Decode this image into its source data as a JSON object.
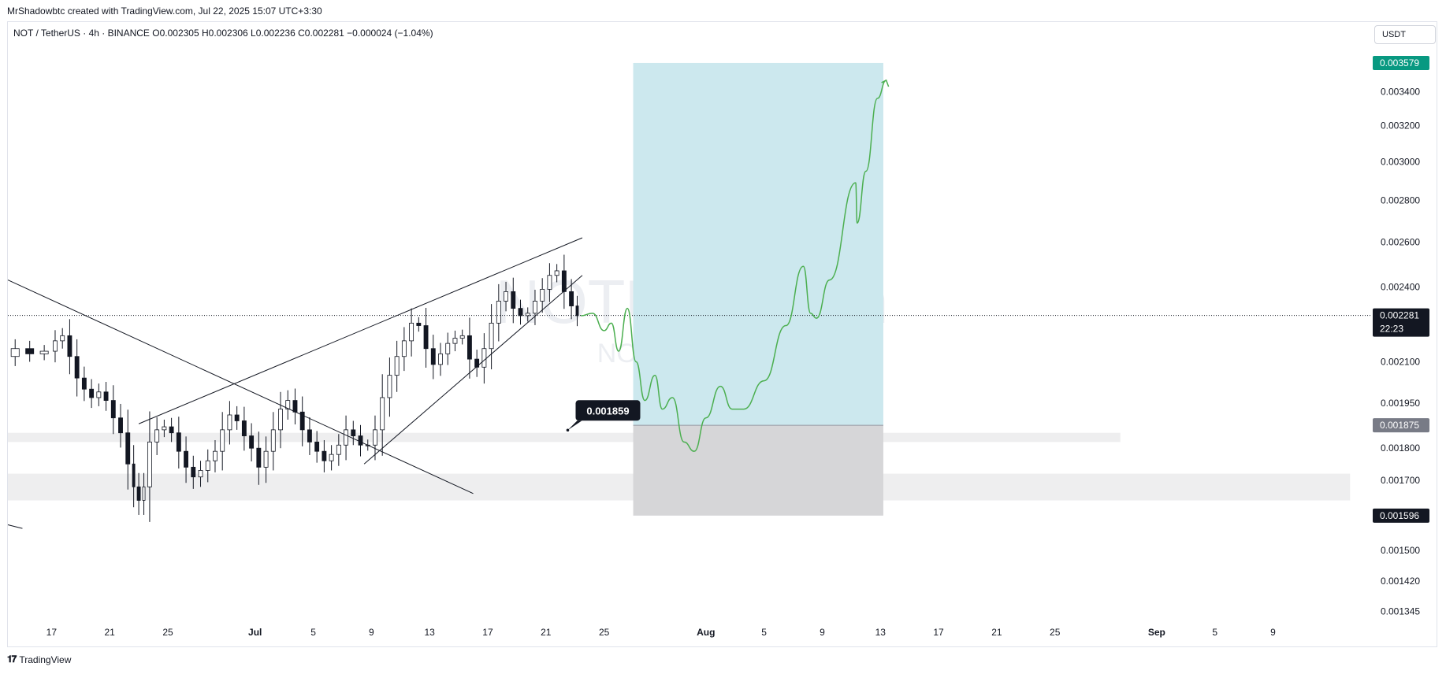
{
  "header": {
    "created_by": "MrShadowbtc created with TradingView.com, Jul 22, 2025 15:07 UTC+3:30"
  },
  "legend": {
    "symbol_line": "NOT / TetherUS · 4h · BINANCE  O0.002305  H0.002306  L0.002236  C0.002281  −0.000024 (−1.04%)"
  },
  "currency_button": "USDT",
  "watermark": {
    "line1": "NOTUSDT, 4h",
    "line2": "NOT / TetherUS"
  },
  "footer": {
    "logo_icon": "tradingview-logo-icon",
    "brand": "TradingView"
  },
  "colors": {
    "target_zone": "#cce8ee",
    "stop_zone": "#d6d6d8",
    "projection": "#4caf50",
    "target_label": "#089981",
    "last_price_label": "#131722",
    "entry_label": "#787b86"
  },
  "chart_data": {
    "type": "candlestick",
    "title": "NOT / TetherUS",
    "interval": "4h",
    "exchange": "BINANCE",
    "y_scale": "log",
    "ylim": [
      0.00132,
      0.00385
    ],
    "ohlc": {
      "open": 0.002305,
      "high": 0.002306,
      "low": 0.002236,
      "close": 0.002281,
      "change": -2.4e-05,
      "change_pct": -1.04
    },
    "y_ticks": [
      "0.003400",
      "0.003200",
      "0.003000",
      "0.002800",
      "0.002600",
      "0.002400",
      "0.002100",
      "0.001950",
      "0.001800",
      "0.001700",
      "0.001500",
      "0.001420",
      "0.001345"
    ],
    "y_tick_values": [
      0.0034,
      0.0032,
      0.003,
      0.0028,
      0.0026,
      0.0024,
      0.0021,
      0.00195,
      0.0018,
      0.0017,
      0.0015,
      0.00142,
      0.001345
    ],
    "x_ticks": [
      "17",
      "21",
      "25",
      "Jul",
      "5",
      "9",
      "13",
      "17",
      "21",
      "25",
      "Aug",
      "5",
      "9",
      "13",
      "17",
      "21",
      "25",
      "Sep",
      "5",
      "9"
    ],
    "x_tick_days": [
      -14,
      -10,
      -6,
      0,
      4,
      8,
      12,
      16,
      20,
      24,
      31,
      35,
      39,
      43,
      47,
      51,
      55,
      62,
      66,
      70
    ],
    "xlim_days": [
      -17,
      76.8
    ],
    "price_labels": [
      {
        "text": "0.003579",
        "value": 0.003579,
        "role": "target"
      },
      {
        "text": "0.002281",
        "sub": "22:23",
        "value": 0.002281,
        "role": "last"
      },
      {
        "text": "0.001875",
        "value": 0.001875,
        "role": "entry"
      },
      {
        "text": "0.001596",
        "value": 0.001596,
        "role": "stop"
      }
    ],
    "callout": {
      "text": "0.001859",
      "value": 0.001859,
      "day": 21.5
    },
    "position": {
      "type": "long",
      "start_day": 26,
      "end_day": 43.2,
      "entry": 0.001875,
      "target": 0.003579,
      "stop": 0.001596
    },
    "support_zones": [
      {
        "from_day": -17,
        "to_day": 59.5,
        "low": 0.00182,
        "high": 0.00185
      },
      {
        "from_day": -17,
        "to_day": 75.3,
        "low": 0.00164,
        "high": 0.00172
      }
    ],
    "trendlines": [
      {
        "d1": -17,
        "p1": 0.00243,
        "d2": 15,
        "p2": 0.00166
      },
      {
        "d1": -8,
        "p1": 0.00188,
        "d2": 22.5,
        "p2": 0.00262
      },
      {
        "d1": 7.5,
        "p1": 0.00175,
        "d2": 22.5,
        "p2": 0.00245
      },
      {
        "d1": -17,
        "p1": 0.00157,
        "d2": -16,
        "p2": 0.00156
      }
    ],
    "candles_close": [
      [
        -17,
        0.00212
      ],
      [
        -16,
        0.00215
      ],
      [
        -15,
        0.00213
      ],
      [
        -14,
        0.00214
      ],
      [
        -13.5,
        0.00218
      ],
      [
        -13,
        0.0022
      ],
      [
        -12.5,
        0.00212
      ],
      [
        -12,
        0.00204
      ],
      [
        -11.5,
        0.002
      ],
      [
        -11,
        0.00197
      ],
      [
        -10.5,
        0.00199
      ],
      [
        -10,
        0.00196
      ],
      [
        -9.5,
        0.0019
      ],
      [
        -9,
        0.00185
      ],
      [
        -8.5,
        0.00175
      ],
      [
        -8.2,
        0.00168
      ],
      [
        -7.8,
        0.00164
      ],
      [
        -7.5,
        0.00168
      ],
      [
        -7,
        0.00182
      ],
      [
        -6.5,
        0.00186
      ],
      [
        -6,
        0.00187
      ],
      [
        -5.5,
        0.00185
      ],
      [
        -5,
        0.00179
      ],
      [
        -4.5,
        0.00174
      ],
      [
        -4,
        0.00171
      ],
      [
        -3.5,
        0.00173
      ],
      [
        -3,
        0.00176
      ],
      [
        -2.5,
        0.00179
      ],
      [
        -2,
        0.00186
      ],
      [
        -1.5,
        0.00191
      ],
      [
        -1,
        0.00189
      ],
      [
        -0.5,
        0.00184
      ],
      [
        0,
        0.0018
      ],
      [
        0.5,
        0.00174
      ],
      [
        1,
        0.00179
      ],
      [
        1.5,
        0.00186
      ],
      [
        2,
        0.00193
      ],
      [
        2.5,
        0.00196
      ],
      [
        3,
        0.00192
      ],
      [
        3.5,
        0.00186
      ],
      [
        4,
        0.00182
      ],
      [
        4.5,
        0.00179
      ],
      [
        5,
        0.00176
      ],
      [
        5.5,
        0.00178
      ],
      [
        6,
        0.00181
      ],
      [
        6.5,
        0.00186
      ],
      [
        7,
        0.00184
      ],
      [
        7.5,
        0.00181
      ],
      [
        8,
        0.00181
      ],
      [
        8.5,
        0.00186
      ],
      [
        9,
        0.00197
      ],
      [
        9.5,
        0.00205
      ],
      [
        10,
        0.00212
      ],
      [
        10.5,
        0.00218
      ],
      [
        11,
        0.00225
      ],
      [
        11.5,
        0.00224
      ],
      [
        12,
        0.00215
      ],
      [
        12.5,
        0.00209
      ],
      [
        13,
        0.00213
      ],
      [
        13.5,
        0.00217
      ],
      [
        14,
        0.00219
      ],
      [
        14.5,
        0.0022
      ],
      [
        15,
        0.00211
      ],
      [
        15.5,
        0.00208
      ],
      [
        16,
        0.00215
      ],
      [
        16.5,
        0.00225
      ],
      [
        17,
        0.00234
      ],
      [
        17.5,
        0.00238
      ],
      [
        18,
        0.00231
      ],
      [
        18.5,
        0.00228
      ],
      [
        19,
        0.00229
      ],
      [
        19.5,
        0.00234
      ],
      [
        20,
        0.00239
      ],
      [
        20.5,
        0.00245
      ],
      [
        21,
        0.00247
      ],
      [
        21.5,
        0.00238
      ],
      [
        22,
        0.00232
      ],
      [
        22.3,
        0.00228
      ]
    ],
    "projection_path": [
      [
        22.4,
        0.00228
      ],
      [
        23.2,
        0.00229
      ],
      [
        24,
        0.00222
      ],
      [
        24.5,
        0.00225
      ],
      [
        25,
        0.00214
      ],
      [
        25.6,
        0.00231
      ],
      [
        26.2,
        0.0021
      ],
      [
        26.8,
        0.00196
      ],
      [
        27.5,
        0.00205
      ],
      [
        28,
        0.00193
      ],
      [
        28.7,
        0.00197
      ],
      [
        29.5,
        0.00182
      ],
      [
        30.2,
        0.00179
      ],
      [
        31,
        0.0019
      ],
      [
        32,
        0.00201
      ],
      [
        32.8,
        0.00193
      ],
      [
        33.6,
        0.00193
      ],
      [
        35,
        0.00203
      ],
      [
        36.5,
        0.00224
      ],
      [
        37.7,
        0.00249
      ],
      [
        38.2,
        0.00229
      ],
      [
        38.6,
        0.00227
      ],
      [
        39.5,
        0.00243
      ],
      [
        41.3,
        0.00289
      ],
      [
        41.4,
        0.00269
      ],
      [
        42.0,
        0.00295
      ],
      [
        42.8,
        0.00336
      ],
      [
        43.4,
        0.00347
      ]
    ]
  }
}
